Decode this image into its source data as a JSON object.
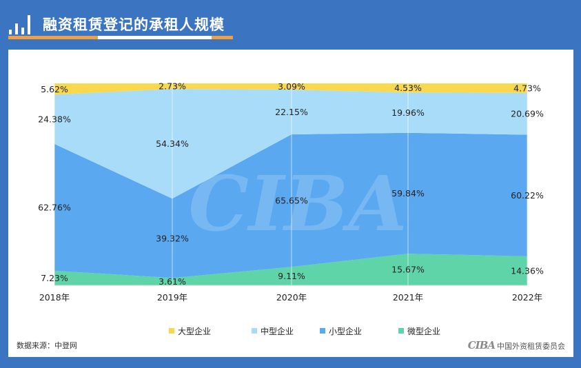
{
  "header": {
    "title": "融资租赁登记的承租人规模"
  },
  "footer": {
    "source": "数据来源：中登网",
    "org_logo": "CIBA",
    "org_name": "中国外资租赁委员会"
  },
  "chart_data": {
    "type": "area",
    "stacked": true,
    "percent": true,
    "categories": [
      "2018年",
      "2019年",
      "2020年",
      "2021年",
      "2022年"
    ],
    "series": [
      {
        "name": "微型企业",
        "color": "#5fd4a8",
        "values": [
          7.23,
          3.61,
          9.11,
          15.67,
          14.36
        ],
        "labels": [
          "7.23%",
          "3.61%",
          "9.11%",
          "15.67%",
          "14.36%"
        ]
      },
      {
        "name": "小型企业",
        "color": "#5aa8f0",
        "values": [
          62.76,
          39.32,
          65.65,
          59.84,
          60.22
        ],
        "labels": [
          "62.76%",
          "39.32%",
          "65.65%",
          "59.84%",
          "60.22%"
        ]
      },
      {
        "name": "中型企业",
        "color": "#a9dcf8",
        "values": [
          24.38,
          54.34,
          22.15,
          19.96,
          20.69
        ],
        "labels": [
          "24.38%",
          "54.34%",
          "22.15%",
          "19.96%",
          "20.69%"
        ]
      },
      {
        "name": "大型企业",
        "color": "#f7d84f",
        "values": [
          5.62,
          2.73,
          3.09,
          4.53,
          4.73
        ],
        "labels": [
          "5.62%",
          "2.73%",
          "3.09%",
          "4.53%",
          "4.73%"
        ]
      }
    ],
    "legend_order": [
      "大型企业",
      "中型企业",
      "小型企业",
      "微型企业"
    ],
    "legend_position": "bottom",
    "ylim": [
      0,
      100
    ],
    "grid": "vertical",
    "watermark": "CIBA"
  }
}
